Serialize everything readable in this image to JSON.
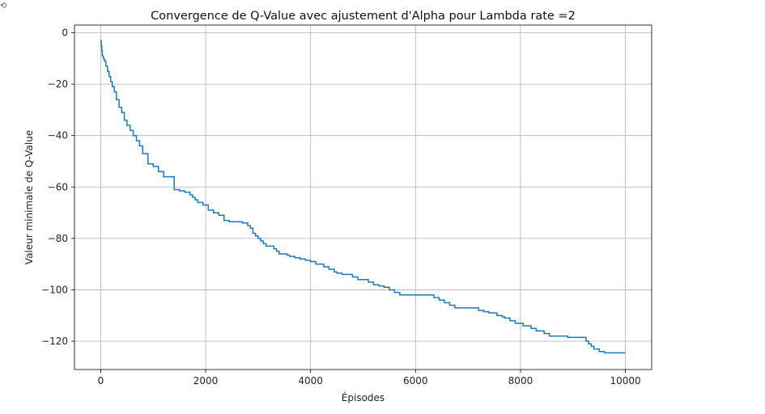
{
  "corner_glyph": "⟲",
  "chart_data": {
    "type": "line",
    "title": "Convergence de Q-Value avec ajustement d'Alpha pour Lambda rate =2",
    "xlabel": "Épisodes",
    "ylabel": "Valeur minimale de Q-Value",
    "xlim": [
      -500,
      10500
    ],
    "ylim": [
      -131,
      3
    ],
    "xticks": [
      0,
      2000,
      4000,
      6000,
      8000,
      10000
    ],
    "xtick_labels": [
      "0",
      "2000",
      "4000",
      "6000",
      "8000",
      "10000"
    ],
    "yticks": [
      0,
      -20,
      -40,
      -60,
      -80,
      -100,
      -120
    ],
    "ytick_labels": [
      "0",
      "−20",
      "−40",
      "−60",
      "−80",
      "−100",
      "−120"
    ],
    "grid": true,
    "line_color": "#1f77b4",
    "series": [
      {
        "step": "post",
        "x": [
          0,
          10,
          20,
          30,
          50,
          70,
          100,
          130,
          160,
          190,
          220,
          260,
          300,
          350,
          400,
          450,
          500,
          560,
          620,
          680,
          740,
          800,
          900,
          1000,
          1100,
          1200,
          1300,
          1400,
          1500,
          1600,
          1700,
          1750,
          1800,
          1850,
          1950,
          2050,
          2150,
          2250,
          2350,
          2450,
          2700,
          2800,
          2850,
          2900,
          2950,
          3000,
          3050,
          3100,
          3150,
          3300,
          3350,
          3400,
          3550,
          3600,
          3700,
          3800,
          3900,
          4000,
          4100,
          4250,
          4350,
          4450,
          4500,
          4600,
          4800,
          4900,
          5100,
          5200,
          5300,
          5400,
          5500,
          5600,
          5700,
          5800,
          5900,
          6000,
          6350,
          6450,
          6550,
          6650,
          6750,
          6850,
          7200,
          7300,
          7400,
          7550,
          7650,
          7700,
          7800,
          7900,
          8050,
          8200,
          8300,
          8450,
          8550,
          8750,
          8900,
          9250,
          9300,
          9350,
          9400,
          9500,
          9600,
          10000
        ],
        "y": [
          -3,
          -5,
          -7,
          -9,
          -10,
          -11,
          -13,
          -15,
          -17,
          -19,
          -21,
          -23,
          -26,
          -29,
          -31,
          -34,
          -36,
          -38,
          -40,
          -42,
          -44,
          -47,
          -51,
          -52,
          -54,
          -56,
          -56,
          -61,
          -61.5,
          -62,
          -63,
          -64,
          -65,
          -66,
          -67,
          -69,
          -70,
          -71,
          -73,
          -73.5,
          -74,
          -75,
          -76,
          -78,
          -79,
          -80,
          -81,
          -82,
          -83,
          -84,
          -85,
          -86,
          -86.5,
          -87,
          -87.5,
          -88,
          -88.5,
          -89,
          -90,
          -91,
          -92,
          -93,
          -93.5,
          -94,
          -95,
          -96,
          -97,
          -98,
          -98.5,
          -99,
          -100,
          -101,
          -102,
          -102,
          -102,
          -102,
          -103,
          -104,
          -105,
          -106,
          -107,
          -107,
          -108,
          -108.5,
          -109,
          -110,
          -110.5,
          -111,
          -112,
          -113,
          -114,
          -115,
          -116,
          -117,
          -118,
          -118,
          -118.5,
          -120,
          -121,
          -122,
          -123,
          -124,
          -124.5,
          -124.5
        ]
      }
    ]
  }
}
